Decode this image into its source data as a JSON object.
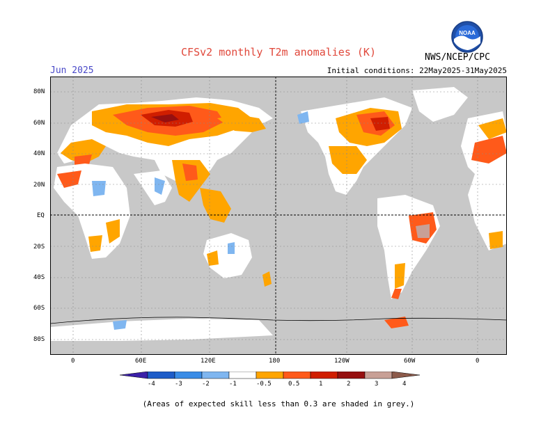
{
  "header": {
    "title": "CFSv2 monthly T2m anomalies (K)",
    "month": "Jun 2025",
    "initial_conditions": "Initial conditions: 22May2025-31May2025",
    "agency": "NWS/NCEP/CPC",
    "logo_icon": "noaa-logo-icon"
  },
  "map": {
    "projection": "equirectangular, centered on 180",
    "lat_labels": [
      "80N",
      "60N",
      "40N",
      "20N",
      "EQ",
      "20S",
      "40S",
      "60S",
      "80S"
    ],
    "lon_labels": [
      "0",
      "60E",
      "120E",
      "180",
      "120W",
      "60W",
      "0"
    ],
    "land_color": "#c8c8c8",
    "ocean_color": "#ffffff"
  },
  "colorbar": {
    "labels": [
      "-4",
      "-3",
      "-2",
      "-1",
      "-0.5",
      "0.5",
      "1",
      "2",
      "3",
      "4"
    ],
    "colors": [
      "#3b20a8",
      "#1e5cc8",
      "#3a8ce6",
      "#7fb6f0",
      "#ffffff",
      "#ffa500",
      "#ff5a1a",
      "#d01e00",
      "#961010",
      "#c8a096",
      "#8c5a4a"
    ]
  },
  "footer": {
    "skill_note": "(Areas of expected skill less than 0.3 are shaded in grey.)"
  }
}
